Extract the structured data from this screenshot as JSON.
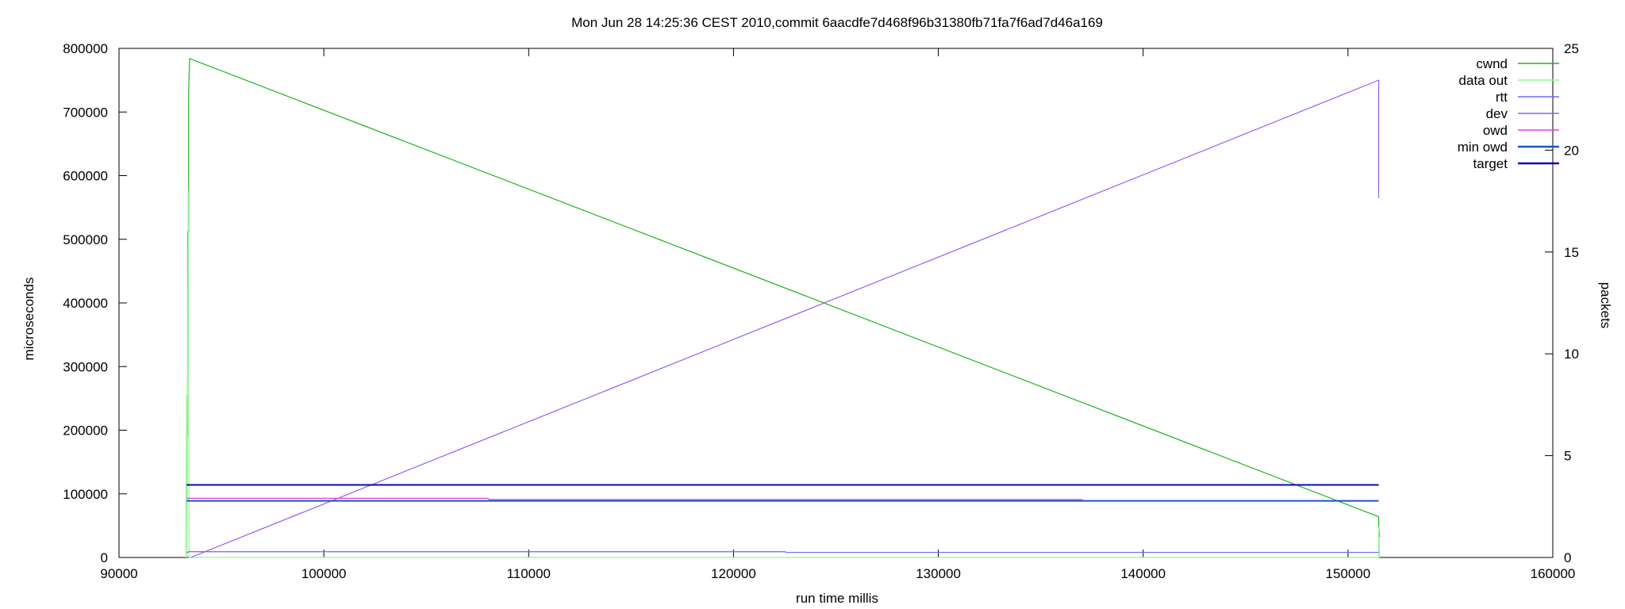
{
  "chart_data": {
    "type": "line",
    "title": "Mon Jun 28 14:25:36 CEST 2010,commit 6aacdfe7d468f96b31380fb71fa7f6ad7d46a169",
    "xlabel": "run time millis",
    "ylabel": "microseconds",
    "y2label": "packets",
    "xlim": [
      90000,
      160000
    ],
    "ylim": [
      0,
      800000
    ],
    "y2lim": [
      0,
      25
    ],
    "x_ticks": [
      "90000",
      "100000",
      "110000",
      "120000",
      "130000",
      "140000",
      "150000",
      "160000"
    ],
    "y_ticks": [
      "0",
      "100000",
      "200000",
      "300000",
      "400000",
      "500000",
      "600000",
      "700000",
      "800000"
    ],
    "y2_ticks": [
      "0",
      "5",
      "10",
      "15",
      "20",
      "25"
    ],
    "grid": false,
    "legend_position": "top-right",
    "series": [
      {
        "name": "cwnd",
        "axis": "y2",
        "color": "#22b322",
        "x": [
          93300,
          93300,
          93350,
          93350,
          93400,
          93400,
          93450,
          151500,
          151500,
          151550
        ],
        "y": [
          4.5,
          6,
          6,
          16,
          16,
          23,
          24.5,
          2.0,
          1.5,
          1.0
        ]
      },
      {
        "name": "data out",
        "axis": "y2",
        "color": "#98f598",
        "x": [
          93250,
          93300,
          93320,
          93380,
          93420,
          151500,
          151500,
          151550
        ],
        "y": [
          0,
          8,
          0,
          18,
          0,
          0,
          1.5,
          0
        ]
      },
      {
        "name": "rtt",
        "axis": "y1",
        "color": "#6a6af0",
        "x": [
          93300,
          93400,
          122500,
          122600,
          151500
        ],
        "y": [
          7000,
          9000,
          9000,
          8000,
          8000
        ]
      },
      {
        "name": "dev",
        "axis": "y1",
        "color": "#9a5cf0",
        "x": [
          93500,
          151500,
          151500
        ],
        "y": [
          0,
          750000,
          565000
        ]
      },
      {
        "name": "owd",
        "axis": "y1",
        "color": "#e23de2",
        "x": [
          93300,
          108000,
          108100,
          137000,
          137100,
          151500
        ],
        "y": [
          93000,
          93000,
          91000,
          91000,
          89000,
          89000
        ]
      },
      {
        "name": "min owd",
        "axis": "y1",
        "color": "#1a55c8",
        "x": [
          93300,
          151500
        ],
        "y": [
          89000,
          89000
        ]
      },
      {
        "name": "target",
        "axis": "y1",
        "color": "#0a0ab0",
        "x": [
          93300,
          151500
        ],
        "y": [
          114000,
          114000
        ]
      }
    ]
  }
}
